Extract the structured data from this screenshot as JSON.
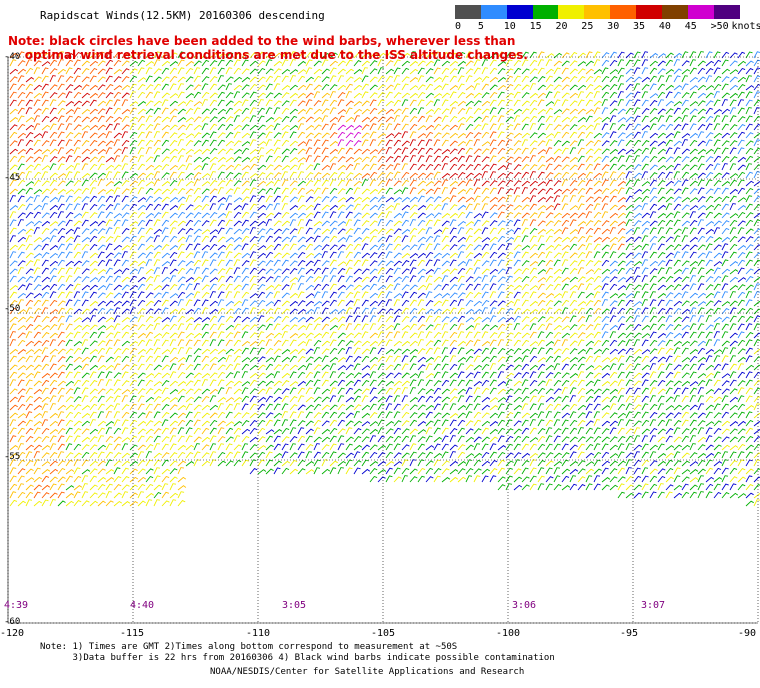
{
  "title": "Rapidscat Winds(12.5KM) 20160306 descending",
  "legend": {
    "unit": "knots",
    "ticks": [
      "0",
      "5",
      "10",
      "15",
      "20",
      "25",
      "30",
      "35",
      "40",
      "45",
      ">50"
    ],
    "colors": [
      "#505050",
      "#2f8cff",
      "#0000d0",
      "#00b000",
      "#f0f000",
      "#ffc000",
      "#ff6000",
      "#d00000",
      "#804000",
      "#d000d0",
      "#500080"
    ]
  },
  "note": "Note: black circles have been added to the wind barbs, wherever less than\n    optimal wind retrieval conditions are met due to the ISS altitude changes.",
  "lat_labels": [
    "-40",
    "-45",
    "-50",
    "-55",
    "-60"
  ],
  "lon_labels": [
    "-120",
    "-115",
    "-110",
    "-105",
    "-100",
    "-95",
    "-90"
  ],
  "times": [
    "4:39",
    "4:40",
    "3:05",
    "3:06",
    "3:07"
  ],
  "footnotes": "Note: 1) Times are GMT 2)Times along bottom correspond to measurement at ~50S\n      3)Data buffer is 22 hrs from 20160306 4) Black wind barbs indicate possible contamination",
  "credit": "NOAA/NESDIS/Center for Satellite Applications and Research"
}
